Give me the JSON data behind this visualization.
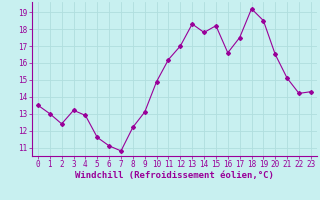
{
  "x": [
    0,
    1,
    2,
    3,
    4,
    5,
    6,
    7,
    8,
    9,
    10,
    11,
    12,
    13,
    14,
    15,
    16,
    17,
    18,
    19,
    20,
    21,
    22,
    23
  ],
  "y": [
    13.5,
    13.0,
    12.4,
    13.2,
    12.9,
    11.6,
    11.1,
    10.8,
    12.2,
    13.1,
    14.9,
    16.2,
    17.0,
    18.3,
    17.8,
    18.2,
    16.6,
    17.5,
    19.2,
    18.5,
    16.5,
    15.1,
    14.2,
    14.3
  ],
  "line_color": "#990099",
  "marker": "D",
  "marker_size": 2.0,
  "bg_color": "#c8f0f0",
  "grid_color": "#b0dede",
  "xlabel": "Windchill (Refroidissement éolien,°C)",
  "xlabel_fontsize": 6.5,
  "tick_fontsize": 5.5,
  "ylim": [
    10.5,
    19.6
  ],
  "xlim": [
    -0.5,
    23.5
  ],
  "yticks": [
    11,
    12,
    13,
    14,
    15,
    16,
    17,
    18,
    19
  ],
  "xticks": [
    0,
    1,
    2,
    3,
    4,
    5,
    6,
    7,
    8,
    9,
    10,
    11,
    12,
    13,
    14,
    15,
    16,
    17,
    18,
    19,
    20,
    21,
    22,
    23
  ]
}
